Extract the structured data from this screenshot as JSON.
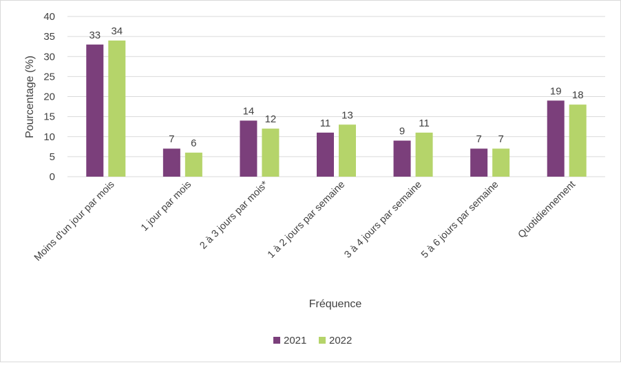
{
  "chart_data": {
    "type": "bar",
    "title": "",
    "xlabel": "Fréquence",
    "ylabel": "Pourcentage (%)",
    "ylim": [
      0,
      40
    ],
    "yticks": [
      0,
      5,
      10,
      15,
      20,
      25,
      30,
      35,
      40
    ],
    "grid": true,
    "legend_position": "bottom",
    "categories": [
      "Moins d'un jour par mois",
      "1 jour par mois",
      "2 à 3 jours par mois*",
      "1 à 2 jours par semaine",
      "3 à 4 jours par semaine",
      "5 à 6 jours par semaine",
      "Quotidiennement"
    ],
    "series": [
      {
        "name": "2021",
        "color": "#7b3f7b",
        "values": [
          33,
          7,
          14,
          11,
          9,
          7,
          19
        ]
      },
      {
        "name": "2022",
        "color": "#b5d46a",
        "values": [
          34,
          6,
          12,
          13,
          11,
          7,
          18
        ]
      }
    ]
  }
}
